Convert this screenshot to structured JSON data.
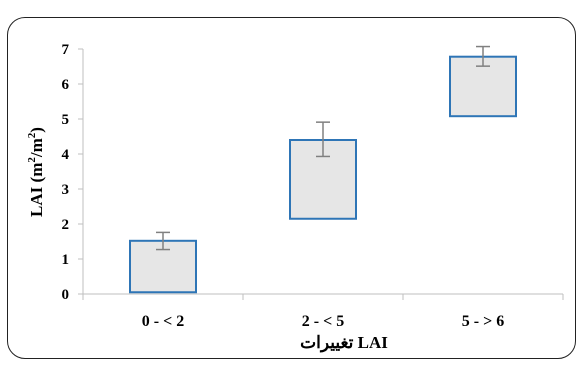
{
  "chart_data": {
    "type": "bar",
    "subtype": "floating-range-box",
    "categories": [
      "0 - < 2",
      "2 - < 5",
      "5 - > 6"
    ],
    "series": [
      {
        "low": [
          0.05,
          2.15,
          5.08
        ],
        "high": [
          1.52,
          4.4,
          6.78
        ],
        "error_center": [
          1.52,
          4.4,
          6.78
        ],
        "error_minus": [
          0.25,
          0.47,
          0.27
        ],
        "error_plus": [
          0.24,
          0.51,
          0.29
        ]
      }
    ],
    "ylabel_parts": [
      "LAI (m",
      "2",
      "/m",
      "2",
      ")"
    ],
    "xlabel": "تغییرات LAI",
    "ylim": [
      0,
      7
    ],
    "yticks": [
      0,
      1,
      2,
      3,
      4,
      5,
      6,
      7
    ],
    "grid": false,
    "legend": "none",
    "colors": {
      "fill": "#e6e6e6",
      "stroke": "#2e75b6",
      "error": "#808080",
      "axis": "#bfbfbf",
      "frame": "#222222"
    }
  }
}
